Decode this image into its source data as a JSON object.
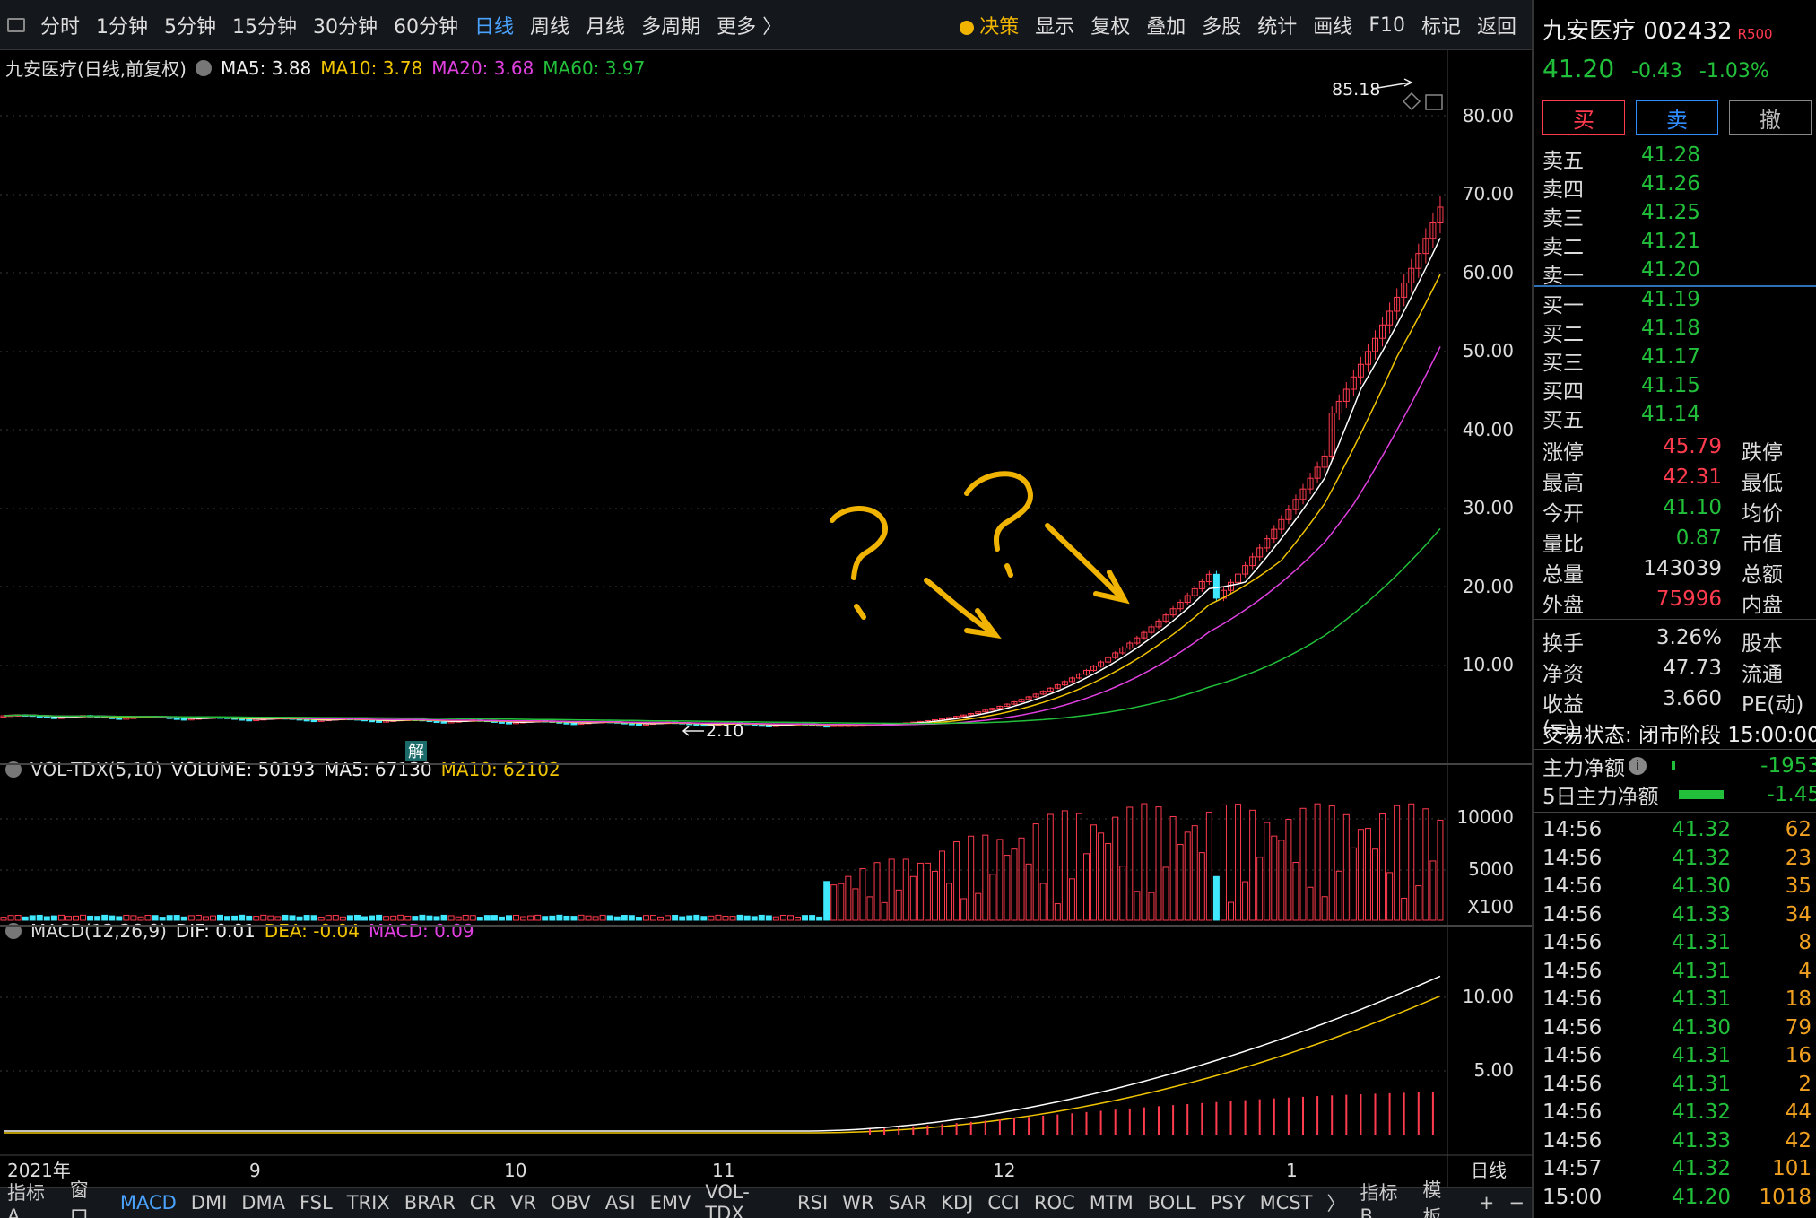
{
  "toolbar": {
    "periods": [
      "分时",
      "1分钟",
      "5分钟",
      "15分钟",
      "30分钟",
      "60分钟",
      "日线",
      "周线",
      "月线",
      "多周期",
      "更多 〉"
    ],
    "active_period": "日线",
    "tools": [
      "决策",
      "显示",
      "复权",
      "叠加",
      "多股",
      "统计",
      "画线",
      "F10",
      "标记",
      "返回"
    ]
  },
  "main_chart": {
    "title": "九安医疗(日线,前复权)",
    "ma5": "MA5: 3.88",
    "ma10": "MA10: 3.78",
    "ma20": "MA20: 3.68",
    "ma60": "MA60: 3.97",
    "high_label": "85.18",
    "low_label": "2.10",
    "jie_mark": "解",
    "y_ticks": [
      "80.00",
      "70.00",
      "60.00",
      "50.00",
      "40.00",
      "30.00",
      "20.00",
      "10.00"
    ],
    "x_ticks": [
      "2021年",
      "9",
      "10",
      "11",
      "12",
      "1"
    ],
    "period_label": "日线",
    "colors": {
      "up": "#ff3b4e",
      "down": "#3fe8ff",
      "ma5": "#ffffff",
      "ma10": "#f0c400",
      "ma20": "#e040e0",
      "ma60": "#22c03a",
      "annotation": "#f0b400"
    }
  },
  "volume_chart": {
    "title": "VOL-TDX(5,10)",
    "volume": "VOLUME: 50193",
    "ma5": "MA5: 67130",
    "ma10": "MA10: 62102",
    "y_ticks": [
      "10000",
      "5000"
    ],
    "unit": "X100"
  },
  "macd_chart": {
    "title": "MACD(12,26,9)",
    "dif": "DIF: 0.01",
    "dea": "DEA: -0.04",
    "macd": "MACD: 0.09",
    "y_ticks": [
      "10.00",
      "5.00"
    ]
  },
  "indicator_tabs": [
    "指标A",
    "窗口",
    "MACD",
    "DMI",
    "DMA",
    "FSL",
    "TRIX",
    "BRAR",
    "CR",
    "VR",
    "OBV",
    "ASI",
    "EMV",
    "VOL-TDX",
    "RSI",
    "WR",
    "SAR",
    "KDJ",
    "CCI",
    "ROC",
    "MTM",
    "BOLL",
    "PSY",
    "MCST",
    "〉",
    "指标B",
    "模 板",
    "+",
    "−"
  ],
  "active_tab": "MACD",
  "quote": {
    "name": "九安医疗 002432",
    "badge": "R500",
    "price": "41.20",
    "change": "-0.43",
    "change_pct": "-1.03%",
    "buttons": {
      "buy": "买",
      "sell": "卖",
      "cancel": "撤"
    },
    "asks": [
      {
        "label": "卖五",
        "price": "41.28"
      },
      {
        "label": "卖四",
        "price": "41.26"
      },
      {
        "label": "卖三",
        "price": "41.25"
      },
      {
        "label": "卖二",
        "price": "41.21"
      },
      {
        "label": "卖一",
        "price": "41.20"
      }
    ],
    "bids": [
      {
        "label": "买一",
        "price": "41.19"
      },
      {
        "label": "买二",
        "price": "41.18"
      },
      {
        "label": "买三",
        "price": "41.17"
      },
      {
        "label": "买四",
        "price": "41.15"
      },
      {
        "label": "买五",
        "price": "41.14"
      }
    ],
    "stats": [
      {
        "label": "涨停",
        "value": "45.79",
        "color": "#ff3b4e",
        "label2": "跌停"
      },
      {
        "label": "最高",
        "value": "42.31",
        "color": "#ff3b4e",
        "label2": "最低"
      },
      {
        "label": "今开",
        "value": "41.10",
        "color": "#22c03a",
        "label2": "均价"
      },
      {
        "label": "量比",
        "value": "0.87",
        "color": "#22c03a",
        "label2": "市值"
      },
      {
        "label": "总量",
        "value": "143039",
        "color": "#dddddd",
        "label2": "总额"
      },
      {
        "label": "外盘",
        "value": "75996",
        "color": "#ff3b4e",
        "label2": "内盘"
      },
      {
        "label": "换手",
        "value": "3.26%",
        "color": "#dddddd",
        "label2": "股本"
      },
      {
        "label": "净资",
        "value": "47.73",
        "color": "#dddddd",
        "label2": "流通"
      },
      {
        "label": "收益(≡)",
        "value": "3.660",
        "color": "#dddddd",
        "label2": "PE(动)"
      }
    ],
    "status": "交易状态: 闭市阶段 15:00:00",
    "main_flow_label": "主力净额",
    "main_flow_value": "-1953",
    "five_day_flow_label": "5日主力净额",
    "five_day_flow_value": "-1.45",
    "ticks": [
      {
        "time": "14:56",
        "price": "41.32",
        "vol": "62",
        "color": "#22c03a"
      },
      {
        "time": "14:56",
        "price": "41.32",
        "vol": "23",
        "color": "#22c03a"
      },
      {
        "time": "14:56",
        "price": "41.30",
        "vol": "35",
        "color": "#22c03a"
      },
      {
        "time": "14:56",
        "price": "41.33",
        "vol": "34",
        "color": "#22c03a"
      },
      {
        "time": "14:56",
        "price": "41.31",
        "vol": "8",
        "color": "#22c03a"
      },
      {
        "time": "14:56",
        "price": "41.31",
        "vol": "4",
        "color": "#22c03a"
      },
      {
        "time": "14:56",
        "price": "41.31",
        "vol": "18",
        "color": "#22c03a"
      },
      {
        "time": "14:56",
        "price": "41.30",
        "vol": "79",
        "color": "#22c03a"
      },
      {
        "time": "14:56",
        "price": "41.31",
        "vol": "16",
        "color": "#22c03a"
      },
      {
        "time": "14:56",
        "price": "41.31",
        "vol": "2",
        "color": "#22c03a"
      },
      {
        "time": "14:56",
        "price": "41.32",
        "vol": "44",
        "color": "#22c03a"
      },
      {
        "time": "14:56",
        "price": "41.33",
        "vol": "42",
        "color": "#22c03a"
      },
      {
        "time": "14:57",
        "price": "41.32",
        "vol": "101",
        "color": "#22c03a"
      },
      {
        "time": "15:00",
        "price": "41.20",
        "vol": "1018",
        "color": "#22c03a"
      }
    ]
  }
}
